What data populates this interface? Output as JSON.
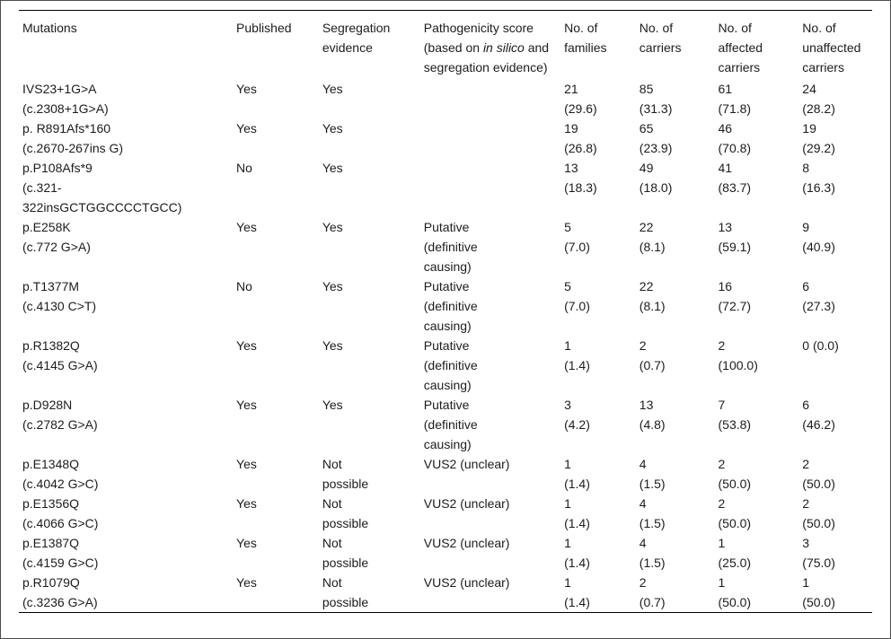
{
  "colors": {
    "background": "#ffffff",
    "text": "#1c1c1c",
    "rule": "#000000",
    "frame_border": "#4d4d4d"
  },
  "table": {
    "columns": [
      {
        "key": "mutations",
        "label": "Mutations"
      },
      {
        "key": "published",
        "label": "Published"
      },
      {
        "key": "segregation-evidence",
        "label": "Segregation evidence"
      },
      {
        "key": "pathogenicity-score",
        "label_prefix": "Pathogenicity score (based on ",
        "label_italic": "in silico",
        "label_suffix": " and segregation evidence)"
      },
      {
        "key": "no-of-families",
        "label": "No. of families"
      },
      {
        "key": "no-of-carriers",
        "label": "No. of carriers"
      },
      {
        "key": "no-of-affected-carriers",
        "label": "No. of affected carriers"
      },
      {
        "key": "no-of-unaffected-carriers",
        "label": "No. of unaffected carriers"
      }
    ],
    "rows": [
      {
        "cells": [
          [
            "IVS23+1G>A",
            "(c.2308+1G>A)"
          ],
          [
            "Yes"
          ],
          [
            "Yes"
          ],
          [],
          [
            "21",
            "(29.6)"
          ],
          [
            "85",
            "(31.3)"
          ],
          [
            "61",
            "(71.8)"
          ],
          [
            "24",
            "(28.2)"
          ]
        ]
      },
      {
        "cells": [
          [
            "p. R891Afs*160",
            "(c.2670-267ins G)"
          ],
          [
            "Yes"
          ],
          [
            "Yes"
          ],
          [],
          [
            "19",
            "(26.8)"
          ],
          [
            "65",
            "(23.9)"
          ],
          [
            "46",
            "(70.8)"
          ],
          [
            "19",
            "(29.2)"
          ]
        ]
      },
      {
        "cells": [
          [
            "p.P108Afs*9",
            "(c.321-",
            "322insGCTGGCCCCTGCC)"
          ],
          [
            "No"
          ],
          [
            "Yes"
          ],
          [],
          [
            "13",
            "(18.3)"
          ],
          [
            "49",
            "(18.0)"
          ],
          [
            "41",
            "(83.7)"
          ],
          [
            "8",
            "(16.3)"
          ]
        ]
      },
      {
        "cells": [
          [
            "p.E258K",
            "(c.772 G>A)"
          ],
          [
            "Yes"
          ],
          [
            "Yes"
          ],
          [
            "Putative",
            "(definitive",
            "causing)"
          ],
          [
            "5",
            "(7.0)"
          ],
          [
            "22",
            "(8.1)"
          ],
          [
            "13",
            "(59.1)"
          ],
          [
            "9",
            "(40.9)"
          ]
        ]
      },
      {
        "cells": [
          [
            "p.T1377M",
            "(c.4130 C>T)"
          ],
          [
            "No"
          ],
          [
            "Yes"
          ],
          [
            "Putative",
            "(definitive",
            "causing)"
          ],
          [
            "5",
            "(7.0)"
          ],
          [
            "22",
            "(8.1)"
          ],
          [
            "16",
            "(72.7)"
          ],
          [
            "6",
            "(27.3)"
          ]
        ]
      },
      {
        "cells": [
          [
            "p.R1382Q",
            "(c.4145 G>A)"
          ],
          [
            "Yes"
          ],
          [
            "Yes"
          ],
          [
            "Putative",
            "(definitive",
            "causing)"
          ],
          [
            "1",
            "(1.4)"
          ],
          [
            "2",
            "(0.7)"
          ],
          [
            "2",
            "(100.0)"
          ],
          [
            "0 (0.0)"
          ]
        ]
      },
      {
        "cells": [
          [
            "p.D928N",
            "(c.2782 G>A)"
          ],
          [
            "Yes"
          ],
          [
            "Yes"
          ],
          [
            "Putative",
            "(definitive",
            "causing)"
          ],
          [
            "3",
            "(4.2)"
          ],
          [
            "13",
            "(4.8)"
          ],
          [
            "7",
            "(53.8)"
          ],
          [
            "6",
            "(46.2)"
          ]
        ]
      },
      {
        "cells": [
          [
            "p.E1348Q",
            "(c.4042 G>C)"
          ],
          [
            "Yes"
          ],
          [
            "Not",
            "possible"
          ],
          [
            "VUS2 (unclear)"
          ],
          [
            "1",
            "(1.4)"
          ],
          [
            "4",
            "(1.5)"
          ],
          [
            "2",
            "(50.0)"
          ],
          [
            "2",
            "(50.0)"
          ]
        ]
      },
      {
        "cells": [
          [
            "p.E1356Q",
            "(c.4066 G>C)"
          ],
          [
            "Yes"
          ],
          [
            "Not",
            "possible"
          ],
          [
            "VUS2 (unclear)"
          ],
          [
            "1",
            "(1.4)"
          ],
          [
            "4",
            "(1.5)"
          ],
          [
            "2",
            "(50.0)"
          ],
          [
            "2",
            "(50.0)"
          ]
        ]
      },
      {
        "cells": [
          [
            "p.E1387Q",
            "(c.4159 G>C)"
          ],
          [
            "Yes"
          ],
          [
            "Not",
            "possible"
          ],
          [
            "VUS2 (unclear)"
          ],
          [
            "1",
            "(1.4)"
          ],
          [
            "4",
            "(1.5)"
          ],
          [
            "1",
            "(25.0)"
          ],
          [
            "3",
            "(75.0)"
          ]
        ]
      },
      {
        "cells": [
          [
            "p.R1079Q",
            "(c.3236 G>A)"
          ],
          [
            "Yes"
          ],
          [
            "Not",
            "possible"
          ],
          [
            "VUS2 (unclear)"
          ],
          [
            "1",
            "(1.4)"
          ],
          [
            "2",
            "(0.7)"
          ],
          [
            "1",
            "(50.0)"
          ],
          [
            "1",
            "(50.0)"
          ]
        ]
      }
    ]
  }
}
